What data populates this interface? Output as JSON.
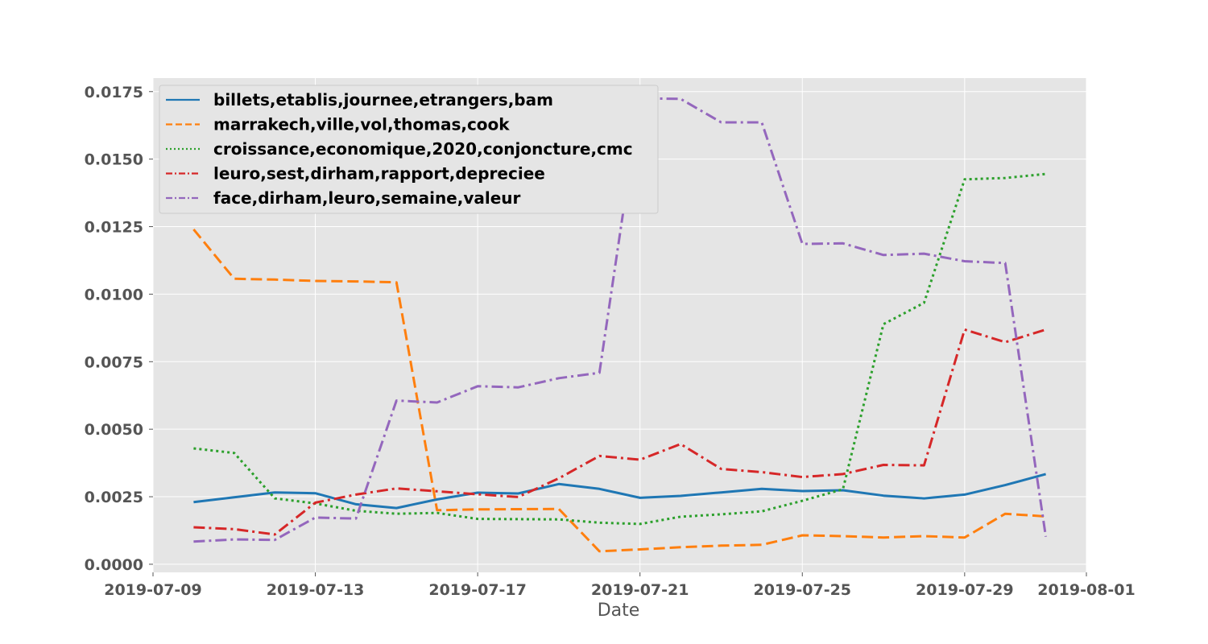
{
  "chart_data": {
    "type": "line",
    "title": "",
    "xlabel": "Date",
    "ylabel": "",
    "x_type": "date",
    "xlim": [
      "2019-07-09",
      "2019-08-01"
    ],
    "ylim": [
      -0.0003,
      0.018
    ],
    "x_ticks": [
      "2019-07-09",
      "2019-07-13",
      "2019-07-17",
      "2019-07-21",
      "2019-07-25",
      "2019-07-29",
      "2019-08-01"
    ],
    "y_ticks": [
      "0.0000",
      "0.0025",
      "0.0050",
      "0.0075",
      "0.0100",
      "0.0125",
      "0.0150",
      "0.0175"
    ],
    "grid": true,
    "legend_position": "top-left",
    "dates": [
      "2019-07-10",
      "2019-07-11",
      "2019-07-12",
      "2019-07-13",
      "2019-07-14",
      "2019-07-15",
      "2019-07-16",
      "2019-07-17",
      "2019-07-18",
      "2019-07-19",
      "2019-07-20",
      "2019-07-21",
      "2019-07-22",
      "2019-07-23",
      "2019-07-24",
      "2019-07-25",
      "2019-07-26",
      "2019-07-27",
      "2019-07-28",
      "2019-07-29",
      "2019-07-30",
      "2019-07-31"
    ],
    "series": [
      {
        "name": "billets,etablis,journee,etrangers,bam",
        "color": "#1f77b4",
        "dash": "solid",
        "values": [
          0.0023,
          0.00248,
          0.00266,
          0.00263,
          0.00222,
          0.00208,
          0.0024,
          0.00265,
          0.00262,
          0.00297,
          0.00279,
          0.00246,
          0.00253,
          0.00266,
          0.00279,
          0.00271,
          0.00274,
          0.00254,
          0.00244,
          0.00258,
          0.00293,
          0.00334
        ]
      },
      {
        "name": "marrakech,ville,vol,thomas,cook",
        "color": "#ff7f0e",
        "dash": "dashed",
        "values": [
          0.0124,
          0.01057,
          0.01054,
          0.01049,
          0.01047,
          0.01044,
          0.002,
          0.00203,
          0.00204,
          0.00205,
          0.00048,
          0.00055,
          0.00063,
          0.00069,
          0.00072,
          0.00107,
          0.00104,
          0.00099,
          0.00104,
          0.00099,
          0.00187,
          0.00177
        ]
      },
      {
        "name": "croissance,economique,2020,conjoncture,cmc",
        "color": "#2ca02c",
        "dash": "dotted",
        "values": [
          0.00429,
          0.00412,
          0.00244,
          0.00225,
          0.00198,
          0.00187,
          0.0019,
          0.00168,
          0.00167,
          0.00166,
          0.00154,
          0.00149,
          0.00176,
          0.00185,
          0.00196,
          0.00235,
          0.00278,
          0.00889,
          0.00968,
          0.01425,
          0.0143,
          0.01445
        ]
      },
      {
        "name": "leuro,sest,dirham,rapport,depreciee",
        "color": "#d62728",
        "dash": "dashdot",
        "values": [
          0.00137,
          0.0013,
          0.0011,
          0.00228,
          0.00258,
          0.00281,
          0.0027,
          0.00259,
          0.00249,
          0.00318,
          0.00401,
          0.00387,
          0.00445,
          0.00353,
          0.00341,
          0.00323,
          0.00334,
          0.00368,
          0.00366,
          0.00869,
          0.00822,
          0.00869
        ]
      },
      {
        "name": "face,dirham,leuro,semaine,valeur",
        "color": "#9467bd",
        "dash": "dashdot",
        "values": [
          0.00084,
          0.00092,
          0.0009,
          0.00173,
          0.00169,
          0.00606,
          0.00599,
          0.00659,
          0.00655,
          0.00689,
          0.00709,
          0.01725,
          0.01723,
          0.01636,
          0.01636,
          0.01186,
          0.01188,
          0.01145,
          0.0115,
          0.01122,
          0.01115,
          0.00102
        ]
      }
    ]
  }
}
